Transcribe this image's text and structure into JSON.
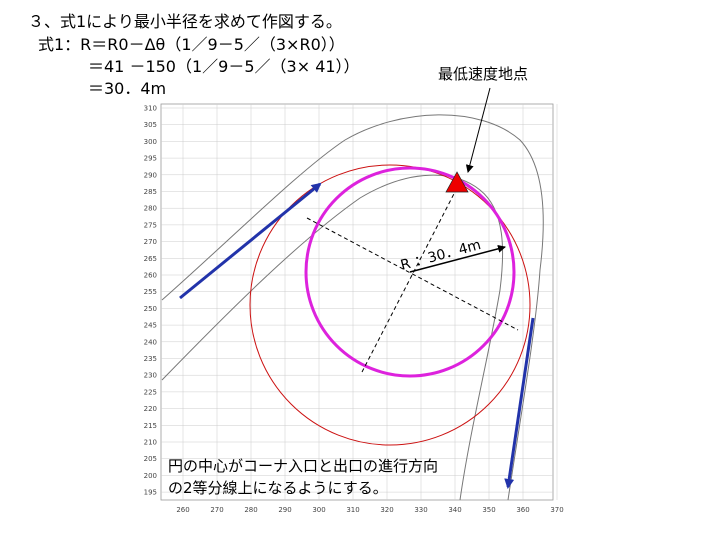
{
  "heading": {
    "line1": "３、式1により最小半径を求めて作図する。",
    "line2": "式1：R＝R0－Δθ（1／9－5／（3×R0））",
    "line3": "＝41 －150（1／9－5／（3× 41））",
    "line4": "＝30．4m"
  },
  "labels": {
    "lowest_speed_point": "最低速度地点",
    "radius": "R ：30．4m",
    "note_line1": "円の中心がコーナ入口と出口の進行方向",
    "note_line2": "の2等分線上になるようにする。"
  },
  "colors": {
    "track_line": "#777777",
    "large_circle": "#cc1111",
    "min_circle": "#dd22dd",
    "direction_arrow": "#2233aa",
    "marker": "#ee0000",
    "grid": "#cccccc"
  },
  "axes": {
    "x_ticks": [
      "260",
      "270",
      "280",
      "290",
      "300",
      "310",
      "320",
      "330",
      "340",
      "350",
      "360",
      "370"
    ],
    "y_ticks": [
      "310",
      "305",
      "300",
      "295",
      "290",
      "285",
      "280",
      "275",
      "270",
      "265",
      "260",
      "255",
      "250",
      "245",
      "240",
      "235",
      "230",
      "225",
      "220",
      "215",
      "210",
      "205",
      "200",
      "195"
    ]
  }
}
